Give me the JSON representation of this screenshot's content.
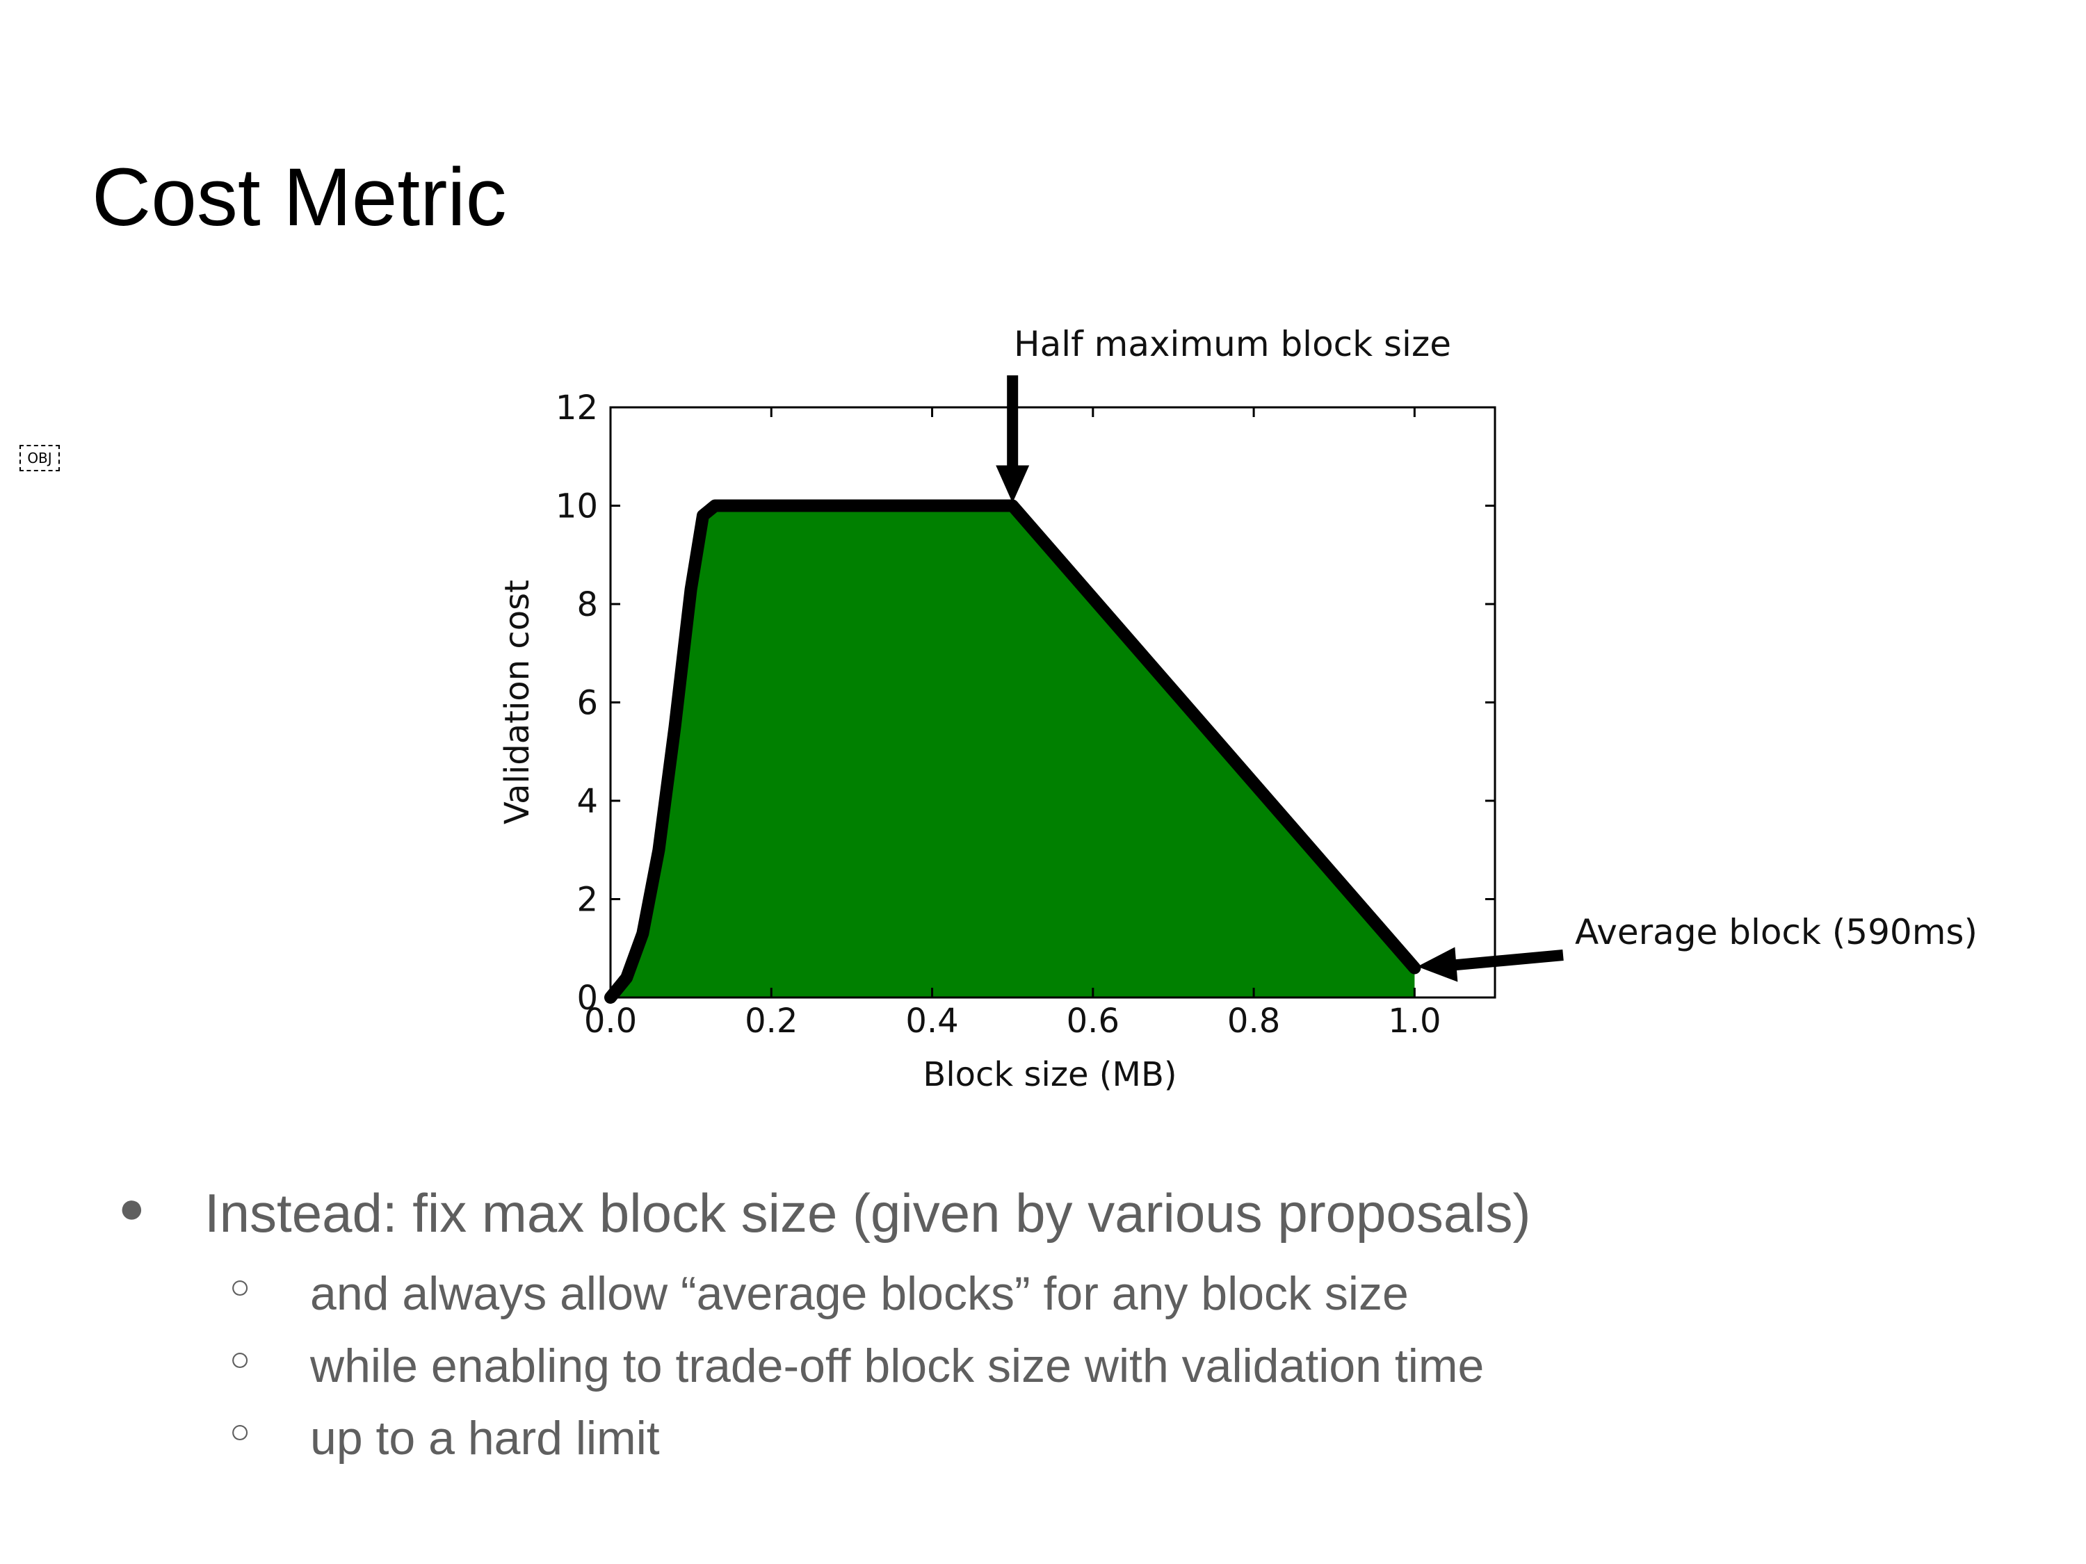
{
  "slide": {
    "title": "Cost Metric",
    "object_placeholder": "OBJ"
  },
  "chart_data": {
    "type": "area",
    "title": "",
    "xlabel": "Block size (MB)",
    "ylabel": "Validation cost",
    "xlim": [
      0.0,
      1.1
    ],
    "ylim": [
      0,
      12
    ],
    "x_ticks": [
      "0.0",
      "0.2",
      "0.4",
      "0.6",
      "0.8",
      "1.0"
    ],
    "y_ticks": [
      "0",
      "2",
      "4",
      "6",
      "8",
      "10",
      "12"
    ],
    "grid": false,
    "fill_color": "#008000",
    "line_color": "#000000",
    "series": [
      {
        "x": [
          0.0,
          0.02,
          0.04,
          0.06,
          0.08,
          0.1,
          0.115,
          0.13,
          0.15,
          0.3,
          0.5,
          1.0
        ],
        "y": [
          0.0,
          0.4,
          1.3,
          3.0,
          5.5,
          8.3,
          9.8,
          10.0,
          10.0,
          10.0,
          10.0,
          0.6
        ]
      }
    ],
    "annotations": [
      {
        "text": "Half maximum block size",
        "x": 0.5,
        "y": 10.0
      },
      {
        "text": "Average block (590ms)",
        "x": 1.0,
        "y": 0.6
      }
    ]
  },
  "bullets": {
    "main": {
      "marker": "●",
      "text": "Instead: fix max block size (given by various proposals)"
    },
    "sub": [
      {
        "marker": "○",
        "text": "and always allow “average blocks” for any block size"
      },
      {
        "marker": "○",
        "text": "while enabling to trade-off block size with validation time"
      },
      {
        "marker": "○",
        "text": "up to a hard limit"
      }
    ]
  }
}
